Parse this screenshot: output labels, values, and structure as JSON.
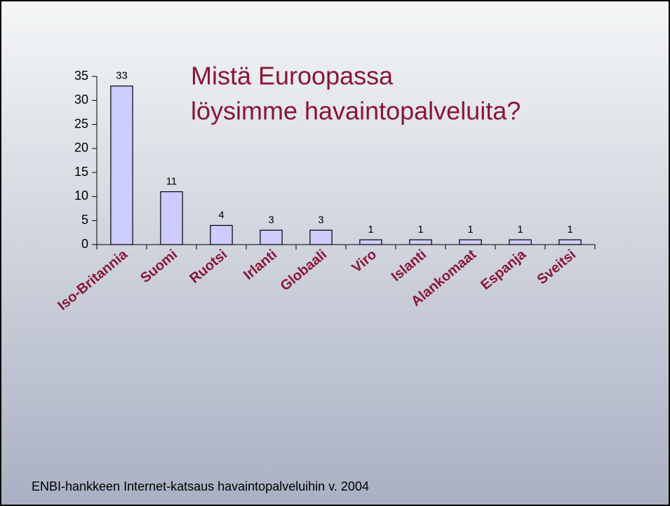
{
  "chart_data": {
    "type": "bar",
    "title": [
      "Mistä Euroopassa",
      "löysimme havaintopalveluita?"
    ],
    "categories": [
      "Iso-Britannia",
      "Suomi",
      "Ruotsi",
      "Irlanti",
      "Globaali",
      "Viro",
      "Islanti",
      "Alankomaat",
      "Espanja",
      "Sveitsi"
    ],
    "values": [
      33,
      11,
      4,
      3,
      3,
      1,
      1,
      1,
      1,
      1
    ],
    "color": "#ccccff",
    "ylim": [
      0,
      35
    ],
    "yticks": [
      0,
      5,
      10,
      15,
      20,
      25,
      30,
      35
    ],
    "grid": false,
    "source": "ENBI-hankkeen Internet-katsaus havaintopalveluihin v. 2004"
  }
}
